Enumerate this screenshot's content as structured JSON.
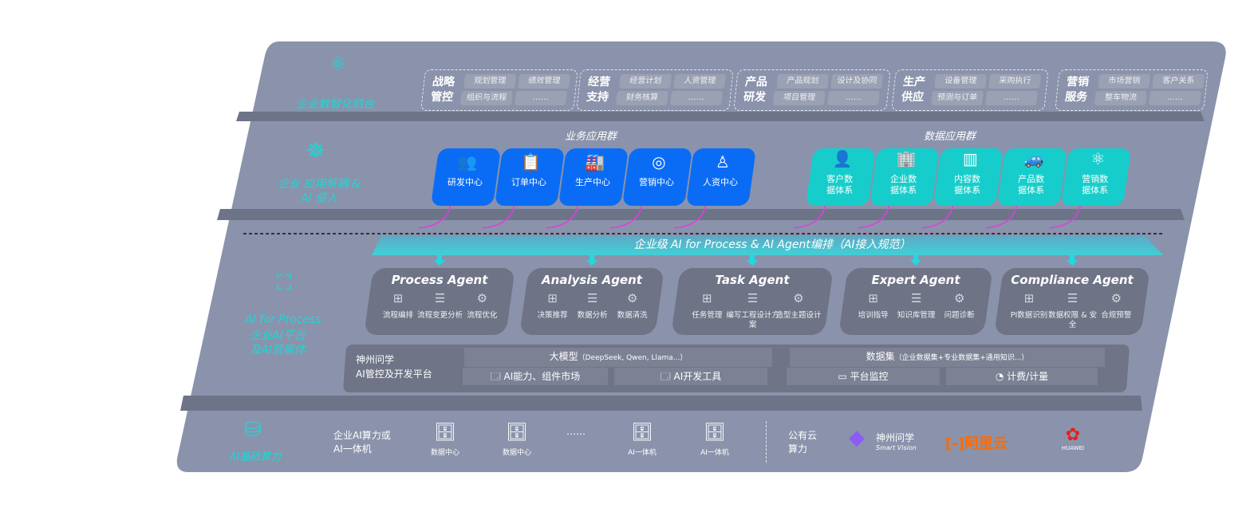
{
  "colors": {
    "panel": "#8a93ab",
    "accent_cyan": "#1fd6d6",
    "business_blue": "#0a6cf5",
    "data_teal": "#17cdcb",
    "arrow_magenta": "#e03ce0",
    "aliyun_orange": "#ff6a00",
    "huawei_red": "#e3221a"
  },
  "layers": {
    "front": {
      "label": "企业数智化前台",
      "icon": "brain-icon",
      "groups": [
        {
          "title": "战略管控",
          "items": [
            "规划管理",
            "绩效管理",
            "组织与流程",
            "……"
          ]
        },
        {
          "title": "经营支持",
          "items": [
            "经营计划",
            "人资管理",
            "财务核算",
            "……"
          ]
        },
        {
          "title": "产品研发",
          "items": [
            "产品规划",
            "设计及协同",
            "项目管理",
            "……"
          ]
        },
        {
          "title": "生产供应",
          "items": [
            "设备管理",
            "采购执行",
            "预测与订单",
            "……"
          ]
        },
        {
          "title": "营销服务",
          "items": [
            "市场营销",
            "客户关系",
            "整车物流",
            "……"
          ]
        }
      ]
    },
    "apps": {
      "label": "企业 应用解耦 & AI 侵入",
      "icon": "molecule-icon",
      "business_title": "业务应用群",
      "business": [
        {
          "label": "研发中心",
          "icon": "team-icon"
        },
        {
          "label": "订单中心",
          "icon": "clipboard-icon"
        },
        {
          "label": "生产中心",
          "icon": "factory-icon"
        },
        {
          "label": "营销中心",
          "icon": "target-icon"
        },
        {
          "label": "人资中心",
          "icon": "person-icon"
        }
      ],
      "data_title": "数据应用群",
      "data": [
        {
          "label": "客户数据体系",
          "icon": "user-icon"
        },
        {
          "label": "企业数据体系",
          "icon": "building-icon"
        },
        {
          "label": "内容数据体系",
          "icon": "books-icon"
        },
        {
          "label": "产品数据体系",
          "icon": "car-icon"
        },
        {
          "label": "营销数据体系",
          "icon": "atom-icon"
        }
      ]
    },
    "orchestration": {
      "banner": "企业级 AI for Process & AI Agent编排（AI接入规范）"
    },
    "ai": {
      "label_en": "AI for Process",
      "label_cn": "企业AI平台及AI智能体",
      "icon": "face-scan-icon",
      "agents": [
        {
          "title": "Process Agent",
          "features": [
            "流程编排",
            "流程变更分析",
            "流程优化"
          ]
        },
        {
          "title": "Analysis Agent",
          "features": [
            "决策推荐",
            "数据分析",
            "数据清洗"
          ]
        },
        {
          "title": "Task Agent",
          "features": [
            "任务管理",
            "编写工程设计方案",
            "造型主题设计"
          ]
        },
        {
          "title": "Expert Agent",
          "features": [
            "培训指导",
            "知识库管理",
            "问题诊断"
          ]
        },
        {
          "title": "Compliance Agent",
          "features": [
            "PI数据识别",
            "数据权限 & 安全",
            "合规预警"
          ]
        }
      ],
      "platform": {
        "title_line1": "神州问学",
        "title_line2": "AI管控及开发平台",
        "model_title": "大模型",
        "model_note": "（DeepSeek, Qwen, Llama...）",
        "dataset_title": "数据集",
        "dataset_note": "（企业数据集+专业数据集+通用知识...）",
        "tools": [
          "AI能力、组件市场",
          "AI开发工具",
          "平台监控",
          "计费/计量"
        ]
      }
    },
    "compute": {
      "label": "AI基础算力",
      "icon": "database-icon",
      "private_title": "企业AI算力或AI一体机",
      "servers": [
        "数据中心",
        "数据中心",
        "AI一体机",
        "AI一体机"
      ],
      "ellipsis": "……",
      "public_title": "公有云算力",
      "vendors": {
        "smartvision_cn": "神州问学",
        "smartvision_en": "Smart Vision",
        "aliyun": "阿里云",
        "huawei": "HUAWEI"
      }
    }
  }
}
